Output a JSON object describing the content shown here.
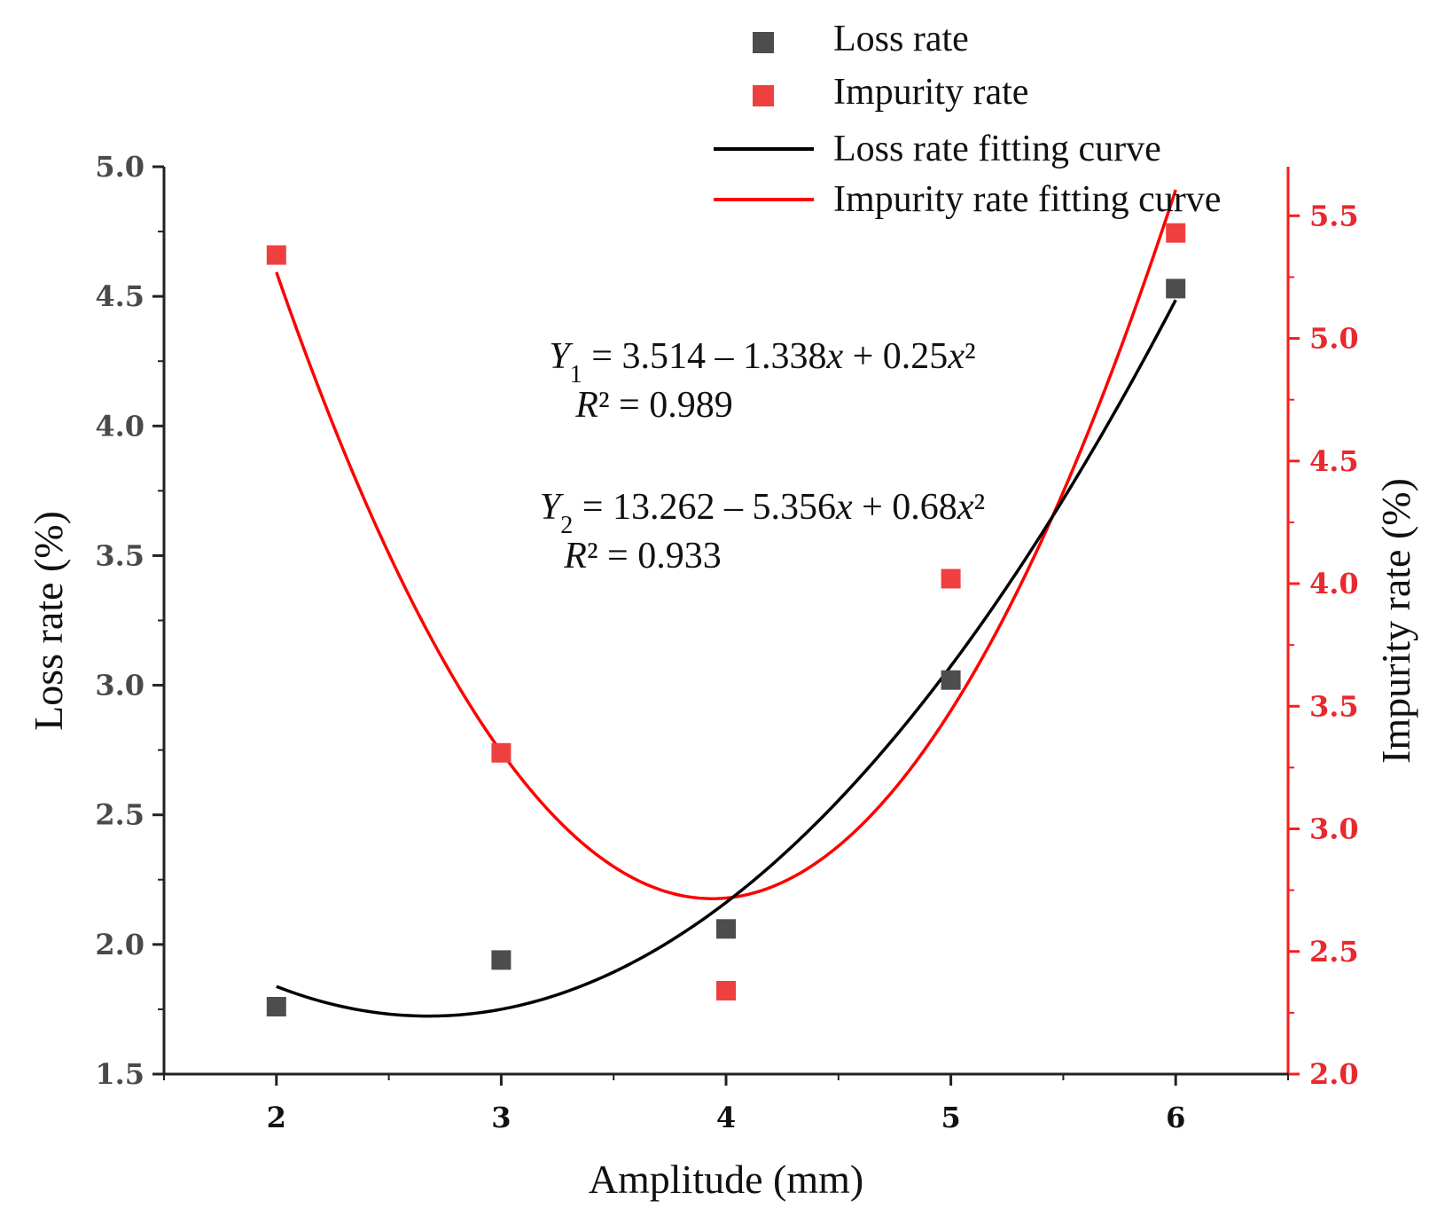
{
  "chart_data": {
    "type": "scatter",
    "x": [
      2,
      3,
      4,
      5,
      6
    ],
    "xlabel": "Amplitude (mm)",
    "xlim": [
      1.5,
      6.5
    ],
    "x_ticks": [
      "2",
      "3",
      "4",
      "5",
      "6"
    ],
    "ylabel_left": "Loss rate (%)",
    "ylim_left": [
      1.5,
      5.0
    ],
    "y_ticks_left": [
      "1.5",
      "2.0",
      "2.5",
      "3.0",
      "3.5",
      "4.0",
      "4.5",
      "5.0"
    ],
    "ylabel_right": "Impurity rate (%)",
    "ylim_right": [
      2.0,
      5.7
    ],
    "y_ticks_right": [
      "2.0",
      "2.5",
      "3.0",
      "3.5",
      "4.0",
      "4.5",
      "5.0",
      "5.5"
    ],
    "series": [
      {
        "name": "Loss rate",
        "axis": "left",
        "color": "#4d4d4d",
        "values": [
          1.76,
          1.94,
          2.06,
          3.02,
          4.53
        ]
      },
      {
        "name": "Impurity rate",
        "axis": "right",
        "color": "#ef4040",
        "values": [
          5.34,
          3.31,
          2.34,
          4.02,
          5.43
        ]
      }
    ],
    "fits": [
      {
        "name": "Loss rate fitting curve",
        "axis": "left",
        "color": "#000000",
        "coefficients": [
          3.514,
          -1.338,
          0.25
        ],
        "x_range": [
          2,
          6
        ]
      },
      {
        "name": "Impurity rate fitting curve",
        "axis": "right",
        "color": "#ff0000",
        "coefficients": [
          13.262,
          -5.356,
          0.68
        ],
        "x_range": [
          2,
          6
        ]
      }
    ],
    "legend": {
      "position": "top-right",
      "items": [
        {
          "label": "Loss rate",
          "kind": "square",
          "color": "#4d4d4d"
        },
        {
          "label": "Impurity rate",
          "kind": "square",
          "color": "#ef4040"
        },
        {
          "label": "Loss rate fitting curve",
          "kind": "line",
          "color": "#000000"
        },
        {
          "label": "Impurity rate fitting curve",
          "kind": "line",
          "color": "#ff0000"
        }
      ]
    },
    "annotations": {
      "eq1": {
        "y": "Y",
        "sub": "1",
        "rhs": " = 3.514 – 1.338",
        "x1": "x",
        "mid": " + 0.25",
        "x2": "x",
        "sq": "²",
        "r2_r": "R",
        "r2_rest": "² = 0.989"
      },
      "eq2": {
        "y": "Y",
        "sub": "2",
        "rhs": " = 13.262 – 5.356",
        "x1": "x",
        "mid": " + 0.68",
        "x2": "x",
        "sq": "²",
        "r2_r": "R",
        "r2_rest": "² = 0.933"
      }
    }
  }
}
